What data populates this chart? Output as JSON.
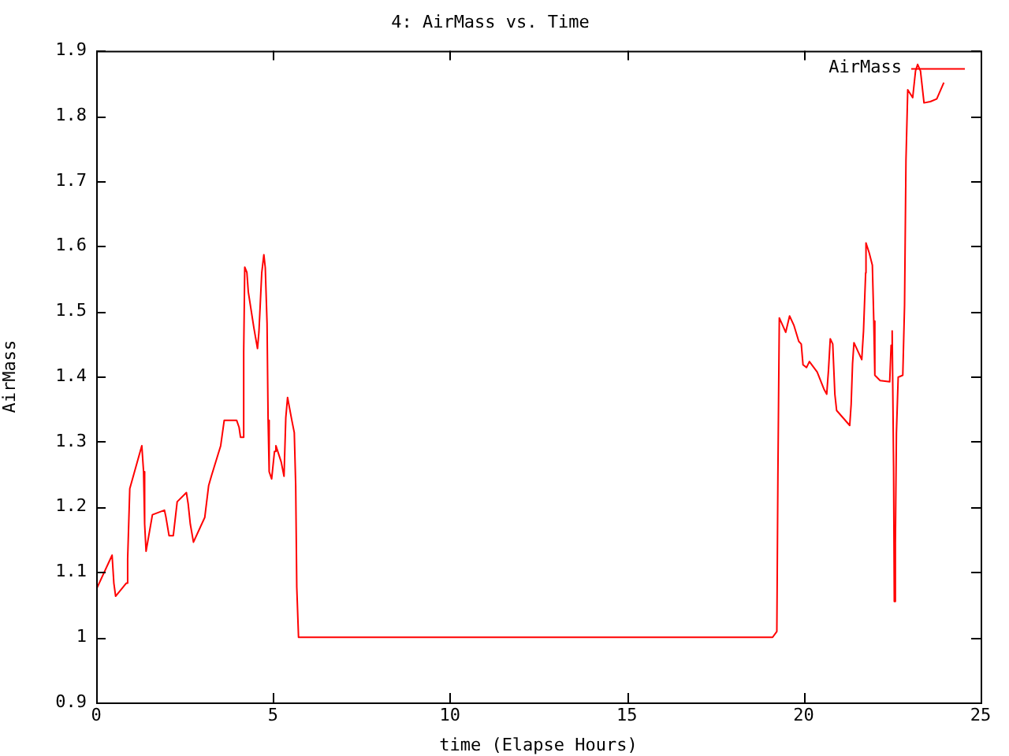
{
  "chart_data": {
    "type": "line",
    "title": "4: AirMass vs. Time",
    "xlabel": "time (Elapse Hours)",
    "ylabel": "AirMass",
    "xlim": [
      0,
      25
    ],
    "xticks": [
      0,
      5,
      10,
      15,
      20,
      25
    ],
    "ylim": [
      0.9,
      1.9
    ],
    "yticks": [
      0.9,
      1,
      1.1,
      1.2,
      1.3,
      1.4,
      1.5,
      1.6,
      1.7,
      1.8,
      1.9
    ],
    "grid": false,
    "legend": "top right",
    "series": [
      {
        "name": "AirMass",
        "color": "#ff0000",
        "x": [
          0,
          0.45,
          0.5,
          0.55,
          0.85,
          0.89,
          0.95,
          1.29,
          1.34,
          1.37,
          1.41,
          1.59,
          1.93,
          1.97,
          2.06,
          2.18,
          2.29,
          2.55,
          2.6,
          2.66,
          2.75,
          3.07,
          3.18,
          3.26,
          3.52,
          3.62,
          3.97,
          4.04,
          4.08,
          4.16,
          4.17,
          4.2,
          4.26,
          4.3,
          4.46,
          4.56,
          4.6,
          4.68,
          4.74,
          4.78,
          4.83,
          4.86,
          4.89,
          4.96,
          5.04,
          5.08,
          5.23,
          5.31,
          5.36,
          5.41,
          5.53,
          5.6,
          5.64,
          5.67,
          5.72,
          19.12,
          19.24,
          19.27,
          19.31,
          19.49,
          19.6,
          19.72,
          19.86,
          19.93,
          19.98,
          20.08,
          20.16,
          20.38,
          20.57,
          20.65,
          20.7,
          20.75,
          20.82,
          20.88,
          20.93,
          21.3,
          21.34,
          21.38,
          21.42,
          21.64,
          21.69,
          21.75,
          21.76,
          21.85,
          21.94,
          21.98,
          22.01,
          22.16,
          22.43,
          22.47,
          22.5,
          22.54,
          22.56,
          22.59,
          22.62,
          22.67,
          22.8,
          22.85,
          22.89,
          22.94,
          23.08,
          23.16,
          23.22,
          23.3,
          23.4,
          23.58,
          23.76,
          23.96
        ],
        "values": [
          1.073,
          1.126,
          1.083,
          1.063,
          1.083,
          1.12,
          1.228,
          1.294,
          1.254,
          1.174,
          1.132,
          1.188,
          1.195,
          1.185,
          1.156,
          1.156,
          1.208,
          1.222,
          1.205,
          1.174,
          1.146,
          1.184,
          1.233,
          1.248,
          1.294,
          1.333,
          1.333,
          1.322,
          1.307,
          1.307,
          1.438,
          1.568,
          1.56,
          1.53,
          1.474,
          1.443,
          1.468,
          1.559,
          1.587,
          1.567,
          1.482,
          1.333,
          1.254,
          1.243,
          1.285,
          1.294,
          1.269,
          1.247,
          1.337,
          1.368,
          1.333,
          1.314,
          1.233,
          1.077,
          1.0,
          1.0,
          1.009,
          1.249,
          1.49,
          1.468,
          1.493,
          1.479,
          1.454,
          1.45,
          1.418,
          1.414,
          1.423,
          1.407,
          1.381,
          1.373,
          1.41,
          1.458,
          1.45,
          1.373,
          1.348,
          1.325,
          1.357,
          1.42,
          1.452,
          1.426,
          1.47,
          1.559,
          1.605,
          1.59,
          1.571,
          1.485,
          1.402,
          1.394,
          1.392,
          1.448,
          1.47,
          1.262,
          1.055,
          1.144,
          1.313,
          1.399,
          1.402,
          1.51,
          1.732,
          1.84,
          1.828,
          1.869,
          1.879,
          1.869,
          1.82,
          1.822,
          1.826,
          1.851
        ]
      }
    ]
  }
}
